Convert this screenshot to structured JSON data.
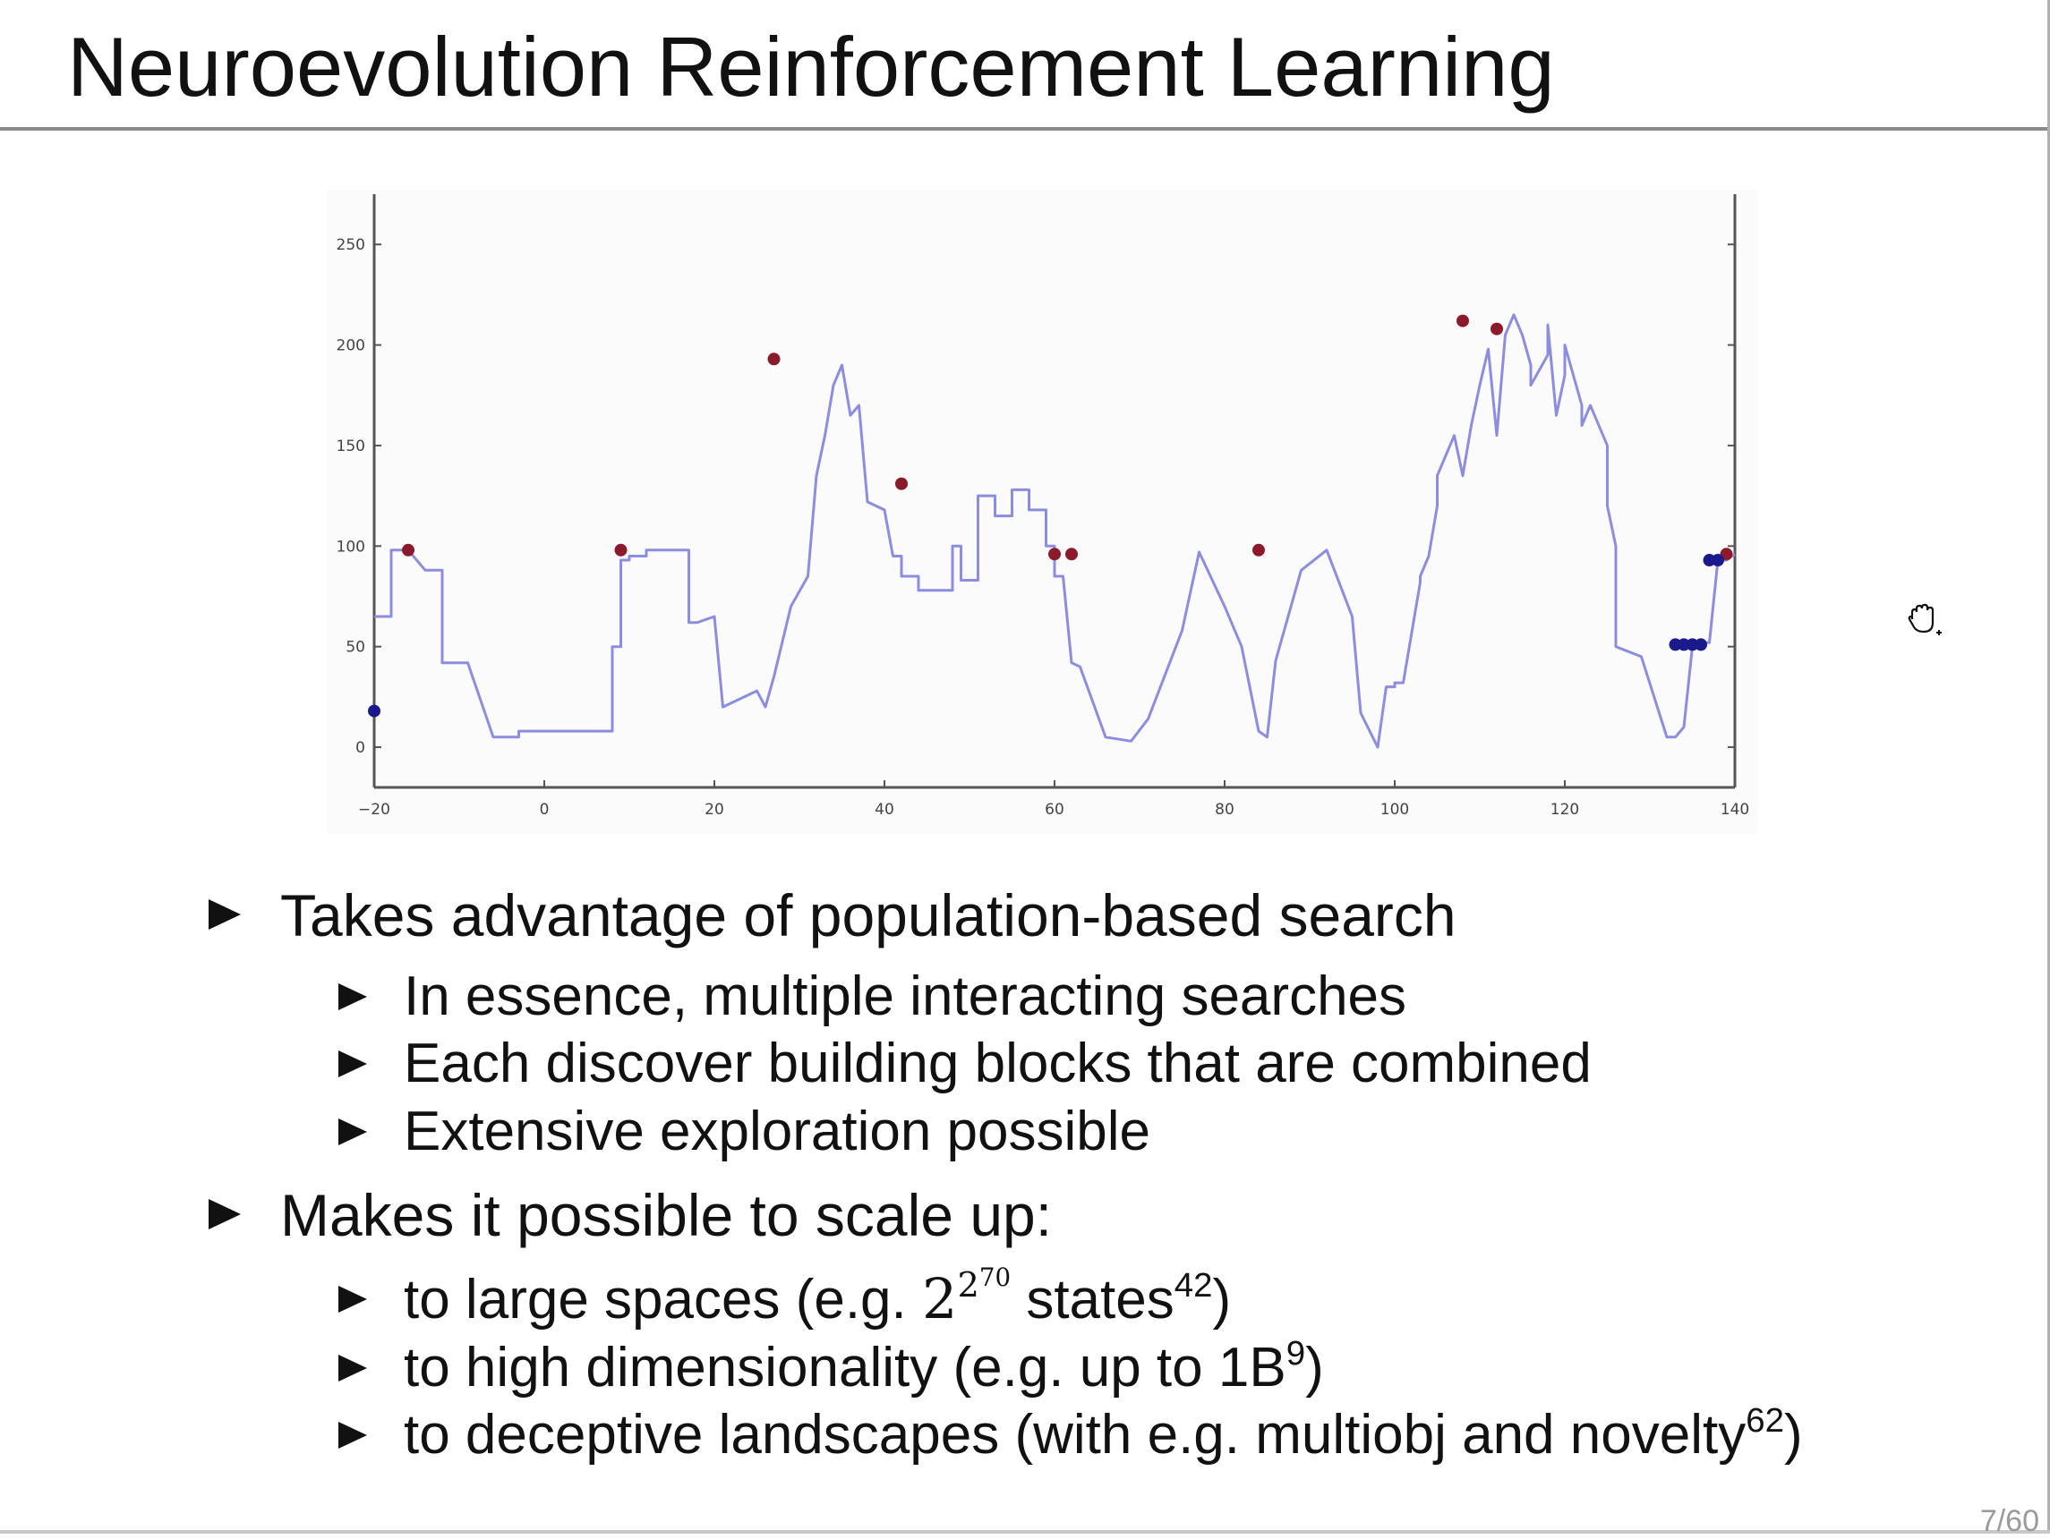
{
  "slide": {
    "title": "Neuroevolution Reinforcement Learning",
    "page_number": "7/60"
  },
  "bullets": {
    "b1": {
      "text": "Takes advantage of population-based search"
    },
    "b1_subs": [
      "In essence, multiple interacting searches",
      "Each discover building blocks that are combined",
      "Extensive exploration possible"
    ],
    "b2": {
      "text": "Makes it possible to scale up:"
    },
    "b2_subs": {
      "s1": {
        "pre": "to large spaces (e.g. ",
        "base": "2",
        "exp_base": "2",
        "exp_exp": "70",
        "post1": " states",
        "ref": "42",
        "post2": ")"
      },
      "s2": {
        "pre": "to high dimensionality (e.g. up to 1B",
        "ref": "9",
        "post": ")"
      },
      "s3": {
        "pre": "to deceptive landscapes (with e.g. multiobj and novelty",
        "ref": "62",
        "post": ")"
      }
    }
  },
  "icons": {
    "cursor": "hand-grab-cursor-icon"
  },
  "chart_data": {
    "type": "line",
    "xlim": [
      -20,
      140
    ],
    "ylim": [
      -20,
      275
    ],
    "x_ticks": [
      -20,
      0,
      20,
      40,
      60,
      80,
      100,
      120,
      140
    ],
    "x_tick_labels": [
      "−20",
      "0",
      "20",
      "40",
      "60",
      "80",
      "100",
      "120",
      "140"
    ],
    "y_ticks": [
      0,
      50,
      100,
      150,
      200,
      250
    ],
    "y_tick_labels": [
      "0",
      "50",
      "100",
      "150",
      "200",
      "250"
    ],
    "grid": false,
    "colors": {
      "line": "#8c8ce0",
      "red_points": "#8b1a2a",
      "blue_points": "#1a1a8c",
      "axes": "#555555"
    },
    "series": [
      {
        "x": [
          -20,
          -20,
          -18,
          -18,
          -16,
          -16,
          -14,
          -14,
          -12,
          -12,
          -9,
          -9,
          -6,
          -6,
          -3,
          -3,
          3,
          3,
          8,
          8,
          9,
          9,
          10,
          10,
          12,
          12,
          15,
          15,
          17,
          17,
          18,
          20,
          20,
          21,
          21,
          25,
          25,
          26,
          26,
          27,
          27,
          29,
          29,
          31,
          31,
          32,
          32,
          33,
          34,
          35,
          35,
          36,
          36,
          37,
          37,
          38,
          38,
          40,
          40,
          41,
          42,
          42,
          44,
          44,
          48,
          48,
          49,
          49,
          51,
          51,
          53,
          53,
          55,
          55,
          57,
          57,
          59,
          59,
          60,
          60,
          61,
          62,
          62,
          63,
          63,
          66,
          66,
          69,
          69,
          71,
          71,
          75,
          75,
          77,
          77,
          80,
          80,
          82,
          82,
          84,
          84,
          85,
          85,
          86,
          86,
          89,
          89,
          92,
          92,
          95,
          95,
          96,
          96,
          98,
          98,
          99,
          100,
          100,
          101,
          103,
          103,
          104,
          105,
          105,
          107,
          108,
          109,
          110,
          111,
          112,
          113,
          114,
          115,
          116,
          116,
          118,
          118,
          119,
          120,
          120,
          122,
          122,
          123,
          125,
          125,
          126,
          126,
          129,
          129,
          132,
          132,
          133,
          133,
          134,
          134,
          135,
          135,
          136,
          137,
          138,
          139,
          140
        ],
        "y": [
          65,
          65,
          65,
          98,
          98,
          98,
          88,
          88,
          88,
          42,
          42,
          42,
          5,
          5,
          5,
          8,
          8,
          8,
          8,
          50,
          50,
          93,
          93,
          95,
          95,
          98,
          98,
          98,
          98,
          62,
          62,
          65,
          65,
          20,
          20,
          28,
          28,
          20,
          20,
          35,
          35,
          70,
          70,
          85,
          85,
          135,
          135,
          155,
          180,
          190,
          190,
          165,
          165,
          170,
          170,
          122,
          122,
          118,
          118,
          95,
          95,
          85,
          85,
          78,
          78,
          100,
          100,
          83,
          83,
          125,
          125,
          115,
          115,
          128,
          128,
          118,
          118,
          100,
          100,
          85,
          85,
          42,
          42,
          40,
          40,
          5,
          5,
          3,
          3,
          14,
          14,
          58,
          58,
          97,
          97,
          70,
          70,
          50,
          50,
          8,
          8,
          5,
          5,
          43,
          43,
          88,
          88,
          98,
          98,
          65,
          65,
          17,
          17,
          0,
          0,
          30,
          30,
          32,
          32,
          82,
          85,
          95,
          120,
          135,
          155,
          135,
          160,
          180,
          198,
          155,
          205,
          215,
          205,
          190,
          180,
          195,
          210,
          165,
          185,
          200,
          170,
          160,
          170,
          150,
          120,
          100,
          50,
          45,
          45,
          5,
          5,
          5,
          5,
          10,
          10,
          50,
          50,
          52,
          52,
          93,
          93,
          96
        ],
        "name": ""
      }
    ],
    "red_points": {
      "x": [
        -16,
        9,
        27,
        42,
        60,
        62,
        84,
        108,
        112,
        139
      ],
      "y": [
        98,
        98,
        193,
        131,
        96,
        96,
        98,
        212,
        208,
        96
      ]
    },
    "blue_points": {
      "x": [
        -20,
        133,
        134,
        135,
        136,
        137,
        138
      ],
      "y": [
        18,
        51,
        51,
        51,
        51,
        93,
        93
      ]
    }
  }
}
